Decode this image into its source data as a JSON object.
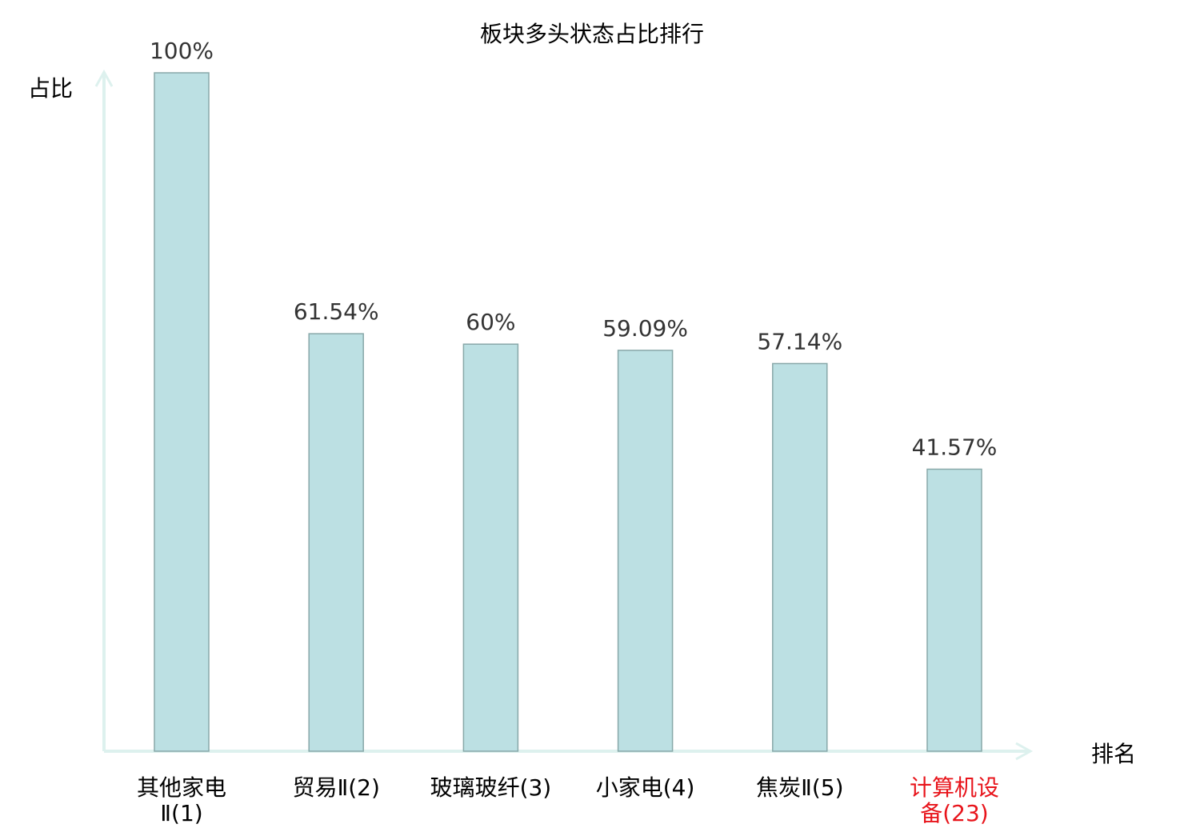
{
  "chart_data": {
    "type": "bar",
    "title": "板块多头状态占比排行",
    "ylabel": "占比",
    "xlabel": "排名",
    "categories": [
      [
        "其他家电",
        "Ⅱ(1)"
      ],
      [
        "贸易Ⅱ(2)"
      ],
      [
        "玻璃玻纤(3)"
      ],
      [
        "小家电(4)"
      ],
      [
        "焦炭Ⅱ(5)"
      ],
      [
        "计算机设",
        "备(23)"
      ]
    ],
    "values": [
      100,
      61.54,
      60,
      59.09,
      57.14,
      41.57
    ],
    "data_labels": [
      "100%",
      "61.54%",
      "60%",
      "59.09%",
      "57.14%",
      "41.57%"
    ],
    "highlight_index": 5,
    "ylim": [
      0,
      100
    ],
    "grid": false,
    "colors": {
      "bar_fill": "#bce0e3",
      "bar_stroke": "#88a8a9",
      "axis": "#ddf1ee",
      "label": "#000000",
      "highlight_label": "#e8141b",
      "data_label": "#333333"
    }
  }
}
